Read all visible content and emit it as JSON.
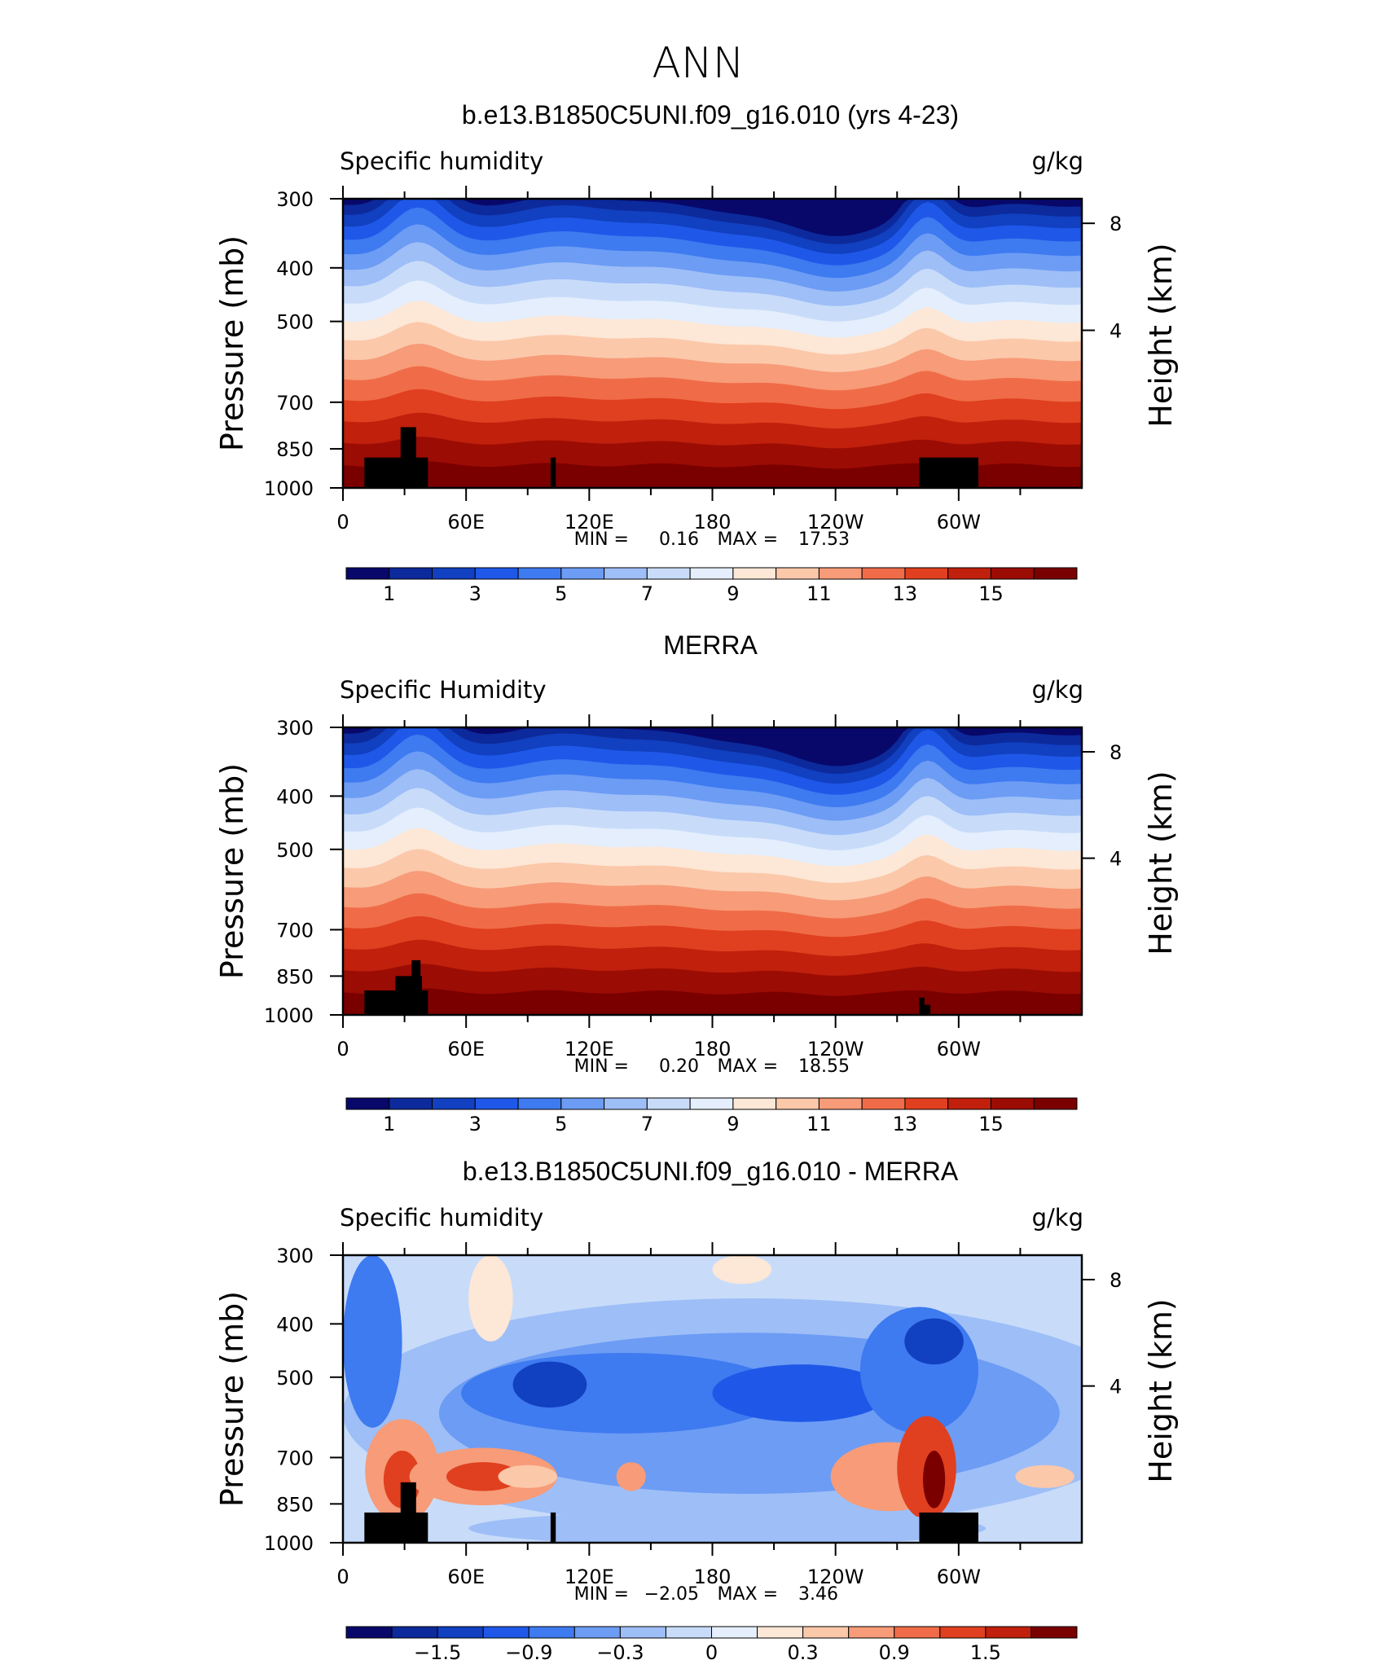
{
  "figure": {
    "title": "ANN"
  },
  "chart_data": [
    {
      "type": "contour",
      "title": "b.e13.B1850C5UNI.f09_g16.010 (yrs 4-23)",
      "left_label": "Specific humidity",
      "right_label": "g/kg",
      "ylabel": "Pressure (mb)",
      "ylabel2": "Height (km)",
      "yticks": [
        300,
        400,
        500,
        700,
        850,
        1000
      ],
      "yticks2": [
        8,
        4
      ],
      "xticks": [
        "0",
        "60E",
        "120E",
        "180",
        "120W",
        "60W"
      ],
      "xlim": [
        0,
        360
      ],
      "ylim": [
        300,
        1000
      ],
      "stats": {
        "min_label": "MIN =",
        "min": "0.16",
        "max_label": "MAX =",
        "max": "17.53"
      },
      "colorbar": {
        "labels": [
          "1",
          "3",
          "5",
          "7",
          "9",
          "11",
          "13",
          "15"
        ],
        "colors": [
          "#08086b",
          "#0c2a9b",
          "#1140c0",
          "#1f58e8",
          "#3e7af0",
          "#6c9cf4",
          "#9ebef7",
          "#c8dcfa",
          "#e4eefc",
          "#fde7d6",
          "#fbc8aa",
          "#f79b78",
          "#f06c48",
          "#e0401f",
          "#c0200c",
          "#9b0c04",
          "#7a0000"
        ]
      }
    },
    {
      "type": "contour",
      "title": "MERRA",
      "left_label": "Specific Humidity",
      "right_label": "g/kg",
      "ylabel": "Pressure (mb)",
      "ylabel2": "Height (km)",
      "yticks": [
        300,
        400,
        500,
        700,
        850,
        1000
      ],
      "yticks2": [
        8,
        4
      ],
      "xticks": [
        "0",
        "60E",
        "120E",
        "180",
        "120W",
        "60W"
      ],
      "xlim": [
        0,
        360
      ],
      "ylim": [
        300,
        1000
      ],
      "stats": {
        "min_label": "MIN =",
        "min": "0.20",
        "max_label": "MAX =",
        "max": "18.55"
      },
      "colorbar": {
        "labels": [
          "1",
          "3",
          "5",
          "7",
          "9",
          "11",
          "13",
          "15"
        ],
        "colors": [
          "#08086b",
          "#0c2a9b",
          "#1140c0",
          "#1f58e8",
          "#3e7af0",
          "#6c9cf4",
          "#9ebef7",
          "#c8dcfa",
          "#e4eefc",
          "#fde7d6",
          "#fbc8aa",
          "#f79b78",
          "#f06c48",
          "#e0401f",
          "#c0200c",
          "#9b0c04",
          "#7a0000"
        ]
      }
    },
    {
      "type": "contour",
      "title": "b.e13.B1850C5UNI.f09_g16.010 - MERRA",
      "left_label": "Specific humidity",
      "right_label": "g/kg",
      "ylabel": "Pressure (mb)",
      "ylabel2": "Height (km)",
      "yticks": [
        300,
        400,
        500,
        700,
        850,
        1000
      ],
      "yticks2": [
        8,
        4
      ],
      "xticks": [
        "0",
        "60E",
        "120E",
        "180",
        "120W",
        "60W"
      ],
      "xlim": [
        0,
        360
      ],
      "ylim": [
        300,
        1000
      ],
      "stats": {
        "min_label": "MIN =",
        "min": "−2.05",
        "max_label": "MAX =",
        "max": "3.46"
      },
      "colorbar": {
        "labels": [
          "−1.5",
          "−0.9",
          "−0.3",
          "0",
          "0.3",
          "0.9",
          "1.5"
        ],
        "colors": [
          "#08086b",
          "#0c2a9b",
          "#1140c0",
          "#1f58e8",
          "#3e7af0",
          "#6c9cf4",
          "#9ebef7",
          "#c8dcfa",
          "#e4eefc",
          "#fde7d6",
          "#fbc8aa",
          "#f79b78",
          "#f06c48",
          "#e0401f",
          "#c0200c",
          "#7a0000"
        ]
      }
    }
  ]
}
